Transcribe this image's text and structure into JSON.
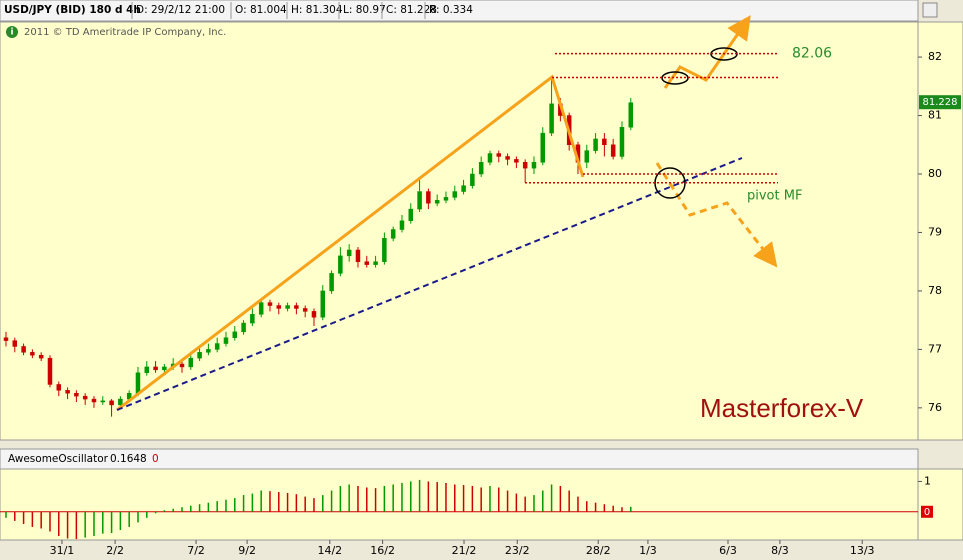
{
  "chart_data": [
    {
      "type": "candlestick",
      "title": "USD/JPY (BID) 180 d 4h",
      "info": [
        "D: 29/2/12 21:00",
        "O: 81.004",
        "H: 81.304",
        "L: 80.97",
        "C: 81.228",
        "R: 0.334"
      ],
      "copyright": "2011 © TD Ameritrade IP Company, Inc.",
      "open": [
        77.2,
        77.15,
        77.05,
        76.95,
        76.9,
        76.85,
        76.4,
        76.3,
        76.25,
        76.2,
        76.15,
        76.1,
        76.12,
        76.05,
        76.15,
        76.25,
        76.6,
        76.7,
        76.65,
        76.7,
        76.75,
        76.7,
        76.85,
        76.95,
        77.0,
        77.1,
        77.2,
        77.3,
        77.45,
        77.6,
        77.8,
        77.75,
        77.7,
        77.75,
        77.7,
        77.65,
        77.55,
        78.0,
        78.3,
        78.6,
        78.7,
        78.5,
        78.45,
        78.5,
        78.9,
        79.05,
        79.2,
        79.4,
        79.7,
        79.5,
        79.55,
        79.6,
        79.7,
        79.8,
        80.0,
        80.2,
        80.35,
        80.3,
        80.25,
        80.2,
        80.1,
        80.2,
        80.7,
        81.2,
        81.0,
        80.5,
        80.2,
        80.4,
        80.6,
        80.5,
        80.3,
        80.8
      ],
      "high": [
        77.3,
        77.2,
        77.1,
        77.0,
        76.95,
        76.9,
        76.45,
        76.35,
        76.3,
        76.25,
        76.2,
        76.2,
        76.15,
        76.2,
        76.3,
        76.7,
        76.8,
        76.8,
        76.75,
        76.85,
        76.8,
        76.9,
        77.05,
        77.1,
        77.2,
        77.3,
        77.4,
        77.5,
        77.7,
        77.85,
        77.85,
        77.8,
        77.8,
        77.8,
        77.75,
        77.7,
        78.1,
        78.35,
        78.75,
        78.8,
        78.75,
        78.6,
        78.6,
        79.0,
        79.1,
        79.3,
        79.5,
        79.95,
        79.75,
        79.65,
        79.7,
        79.8,
        79.9,
        80.1,
        80.3,
        80.4,
        80.4,
        80.35,
        80.3,
        80.25,
        80.3,
        80.8,
        81.65,
        81.3,
        81.05,
        80.55,
        80.5,
        80.7,
        80.7,
        80.6,
        80.9,
        81.3
      ],
      "low": [
        77.05,
        76.95,
        76.9,
        76.85,
        76.8,
        76.35,
        76.2,
        76.15,
        76.1,
        76.05,
        76.0,
        76.05,
        75.85,
        76.0,
        76.1,
        76.2,
        76.55,
        76.6,
        76.6,
        76.65,
        76.6,
        76.65,
        76.8,
        76.9,
        76.95,
        77.05,
        77.15,
        77.25,
        77.4,
        77.55,
        77.65,
        77.6,
        77.65,
        77.6,
        77.55,
        77.4,
        77.5,
        77.95,
        78.25,
        78.5,
        78.4,
        78.4,
        78.4,
        78.45,
        78.85,
        79.0,
        79.15,
        79.35,
        79.4,
        79.45,
        79.5,
        79.55,
        79.65,
        79.75,
        79.95,
        80.15,
        80.2,
        80.15,
        80.1,
        79.85,
        80.0,
        80.15,
        80.65,
        80.9,
        80.4,
        80.0,
        80.1,
        80.35,
        80.3,
        80.25,
        80.25,
        80.75
      ],
      "close": [
        77.15,
        77.05,
        76.95,
        76.9,
        76.85,
        76.4,
        76.3,
        76.25,
        76.2,
        76.15,
        76.1,
        76.12,
        76.05,
        76.15,
        76.25,
        76.6,
        76.7,
        76.65,
        76.7,
        76.75,
        76.7,
        76.85,
        76.95,
        77.0,
        77.1,
        77.2,
        77.3,
        77.45,
        77.6,
        77.8,
        77.75,
        77.7,
        77.75,
        77.7,
        77.65,
        77.55,
        78.0,
        78.3,
        78.6,
        78.7,
        78.5,
        78.45,
        78.5,
        78.9,
        79.05,
        79.2,
        79.4,
        79.7,
        79.5,
        79.55,
        79.6,
        79.7,
        79.8,
        80.0,
        80.2,
        80.35,
        80.3,
        80.25,
        80.2,
        80.1,
        80.2,
        80.7,
        81.2,
        81.0,
        80.5,
        80.2,
        80.4,
        80.6,
        80.5,
        80.3,
        80.8,
        81.22
      ],
      "up_color": "#009900",
      "down_color": "#cc0000",
      "last_price": 81.228,
      "levels": [
        82.06,
        81.65,
        80.0,
        79.85
      ],
      "annotations": [
        "pivot MF",
        "Masterforex-V"
      ],
      "xlim": [
        -0.68,
        103.64
      ],
      "xticks": [
        {
          "value": 6.36,
          "label": "31/1"
        },
        {
          "value": 12.4,
          "label": "2/2"
        },
        {
          "value": 21.6,
          "label": "7/2"
        },
        {
          "value": 27.4,
          "label": "9/2"
        },
        {
          "value": 36.8,
          "label": "14/2"
        },
        {
          "value": 42.8,
          "label": "16/2"
        },
        {
          "value": 52.05,
          "label": "21/2"
        },
        {
          "value": 58.1,
          "label": "23/2"
        },
        {
          "value": 67.3,
          "label": "28/2"
        },
        {
          "value": 72.95,
          "label": "1/3"
        },
        {
          "value": 82.05,
          "label": "6/3"
        },
        {
          "value": 87.95,
          "label": "8/3"
        },
        {
          "value": 97.3,
          "label": "13/3"
        }
      ],
      "ylim": [
        75.45,
        82.6
      ],
      "yticks": [
        76,
        77,
        78,
        79,
        80,
        81,
        82
      ]
    },
    {
      "type": "oscillator",
      "title": "AwesomeOscillator",
      "readouts": [
        0.1648,
        0
      ],
      "values": [
        -0.2,
        -0.3,
        -0.4,
        -0.5,
        -0.55,
        -0.65,
        -0.8,
        -0.88,
        -0.9,
        -0.85,
        -0.8,
        -0.72,
        -0.7,
        -0.6,
        -0.5,
        -0.35,
        -0.2,
        -0.05,
        0.05,
        0.1,
        0.15,
        0.2,
        0.25,
        0.3,
        0.35,
        0.4,
        0.45,
        0.55,
        0.6,
        0.7,
        0.68,
        0.65,
        0.62,
        0.58,
        0.5,
        0.45,
        0.55,
        0.7,
        0.85,
        0.9,
        0.85,
        0.8,
        0.78,
        0.85,
        0.9,
        0.95,
        1.0,
        1.05,
        1.0,
        0.98,
        0.95,
        0.9,
        0.88,
        0.85,
        0.8,
        0.85,
        0.8,
        0.7,
        0.6,
        0.5,
        0.55,
        0.7,
        0.9,
        0.85,
        0.7,
        0.5,
        0.35,
        0.3,
        0.25,
        0.2,
        0.15,
        0.1648
      ],
      "up_color": "#009900",
      "down_color": "#cc0000",
      "ylim": [
        -0.93,
        1.41
      ],
      "yticks": [
        0,
        1
      ]
    }
  ]
}
